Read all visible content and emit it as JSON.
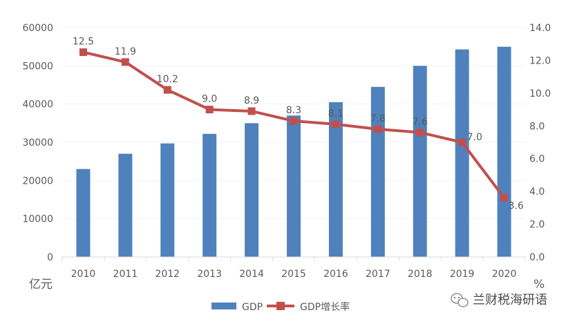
{
  "chart_data": {
    "type": "bar+line",
    "categories": [
      "2010",
      "2011",
      "2012",
      "2013",
      "2014",
      "2015",
      "2016",
      "2017",
      "2018",
      "2019",
      "2020"
    ],
    "series": [
      {
        "name": "GDP",
        "type": "bar",
        "axis": "left",
        "values": [
          23000,
          27000,
          29700,
          32200,
          35000,
          37000,
          40500,
          44500,
          50000,
          54300,
          55000
        ],
        "color": "#4F81BD"
      },
      {
        "name": "GDP增长率",
        "type": "line",
        "axis": "right",
        "values": [
          12.5,
          11.9,
          10.2,
          9.0,
          8.9,
          8.3,
          8.1,
          7.8,
          7.6,
          7.0,
          3.6
        ],
        "labels": [
          "12.5",
          "11.9",
          "10.2",
          "9.0",
          "8.9",
          "8.3",
          "8.1",
          "7.8",
          "7.6",
          "7.0",
          "3.6"
        ],
        "color": "#C0504D"
      }
    ],
    "left_axis": {
      "min": 0,
      "max": 60000,
      "ticks": [
        0,
        10000,
        20000,
        30000,
        40000,
        50000,
        60000
      ],
      "tick_labels": [
        "0",
        "10000",
        "20000",
        "30000",
        "40000",
        "50000",
        "60000"
      ],
      "unit_label": "亿元"
    },
    "right_axis": {
      "min": 0,
      "max": 14,
      "ticks": [
        0,
        2,
        4,
        6,
        8,
        10,
        12,
        14
      ],
      "tick_labels": [
        "0.0",
        "2.0",
        "4.0",
        "6.0",
        "8.0",
        "10.0",
        "12.0",
        "14.0"
      ],
      "unit_label": "%"
    },
    "grid": true,
    "legend_position": "bottom"
  },
  "watermark": {
    "text": "兰财税海研语",
    "icon": "wechat-icon"
  }
}
